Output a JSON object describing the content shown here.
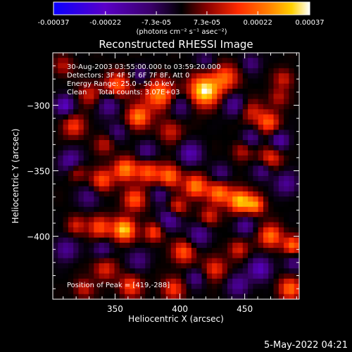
{
  "colorbar": {
    "tick_labels": [
      "-0.00037",
      "-0.00022",
      "-7.3e-05",
      "7.3e-05",
      "0.00022",
      "0.00037"
    ],
    "ticks": [
      -0.00037,
      -0.00022,
      -7.3e-05,
      7.3e-05,
      0.00022,
      0.00037
    ],
    "range": [
      -0.00037,
      0.00037
    ],
    "unit_label": "(photons cm⁻² s⁻¹ asec⁻²)"
  },
  "chart_data": {
    "type": "heatmap",
    "title": "Reconstructed RHESSI Image",
    "xlabel": "Heliocentric X (arcsec)",
    "ylabel": "Heliocentric Y (arcsec)",
    "xlim": [
      302,
      492
    ],
    "ylim": [
      -448,
      -260
    ],
    "x_ticks": [
      350,
      400,
      450
    ],
    "x_tick_labels": [
      "350",
      "400",
      "450"
    ],
    "y_ticks": [
      -300,
      -350,
      -400
    ],
    "y_tick_labels": [
      "−300",
      "−350",
      "−400"
    ],
    "info_lines": [
      "30-Aug-2003 03:55:00.000 to 03:59:20.000",
      "Detectors: 3F 4F 5F 6F 7F 8F, Att 0",
      "Energy Range: 25.0 - 50.0 keV",
      "Clean     Total counts: 3.07E+03"
    ],
    "peak_label": "Position of Peak = [419,-288]",
    "peak": [
      419,
      -288
    ],
    "colormap": [
      "#0a00ff",
      "#5a00c8",
      "#3a006a",
      "#000000",
      "#8a0000",
      "#ff2a00",
      "#ff8000",
      "#ffd000",
      "#ffffff"
    ],
    "blobs": [
      {
        "x": 419,
        "y": -289,
        "v": 1.0,
        "s": 8
      },
      {
        "x": 384,
        "y": -292,
        "v": 0.7,
        "s": 8
      },
      {
        "x": 435,
        "y": -279,
        "v": 0.55,
        "s": 7
      },
      {
        "x": 352,
        "y": -285,
        "v": 0.55,
        "s": 7
      },
      {
        "x": 368,
        "y": -309,
        "v": 0.7,
        "s": 6
      },
      {
        "x": 330,
        "y": -292,
        "v": 0.35,
        "s": 6
      },
      {
        "x": 318,
        "y": -316,
        "v": 0.45,
        "s": 6
      },
      {
        "x": 342,
        "y": -330,
        "v": 0.3,
        "s": 5
      },
      {
        "x": 393,
        "y": -320,
        "v": 0.35,
        "s": 6
      },
      {
        "x": 455,
        "y": -305,
        "v": 0.35,
        "s": 6
      },
      {
        "x": 468,
        "y": -313,
        "v": 0.55,
        "s": 6
      },
      {
        "x": 476,
        "y": -294,
        "v": 0.3,
        "s": 5
      },
      {
        "x": 470,
        "y": -340,
        "v": 0.45,
        "s": 6
      },
      {
        "x": 448,
        "y": -335,
        "v": 0.3,
        "s": 5
      },
      {
        "x": 320,
        "y": -350,
        "v": 0.35,
        "s": 5
      },
      {
        "x": 340,
        "y": -357,
        "v": 0.55,
        "s": 6
      },
      {
        "x": 358,
        "y": -349,
        "v": 0.7,
        "s": 6
      },
      {
        "x": 375,
        "y": -351,
        "v": 0.55,
        "s": 6
      },
      {
        "x": 392,
        "y": -354,
        "v": 0.65,
        "s": 6
      },
      {
        "x": 412,
        "y": -362,
        "v": 0.7,
        "s": 6
      },
      {
        "x": 430,
        "y": -367,
        "v": 0.65,
        "s": 6
      },
      {
        "x": 446,
        "y": -373,
        "v": 0.85,
        "s": 6
      },
      {
        "x": 458,
        "y": -376,
        "v": 0.65,
        "s": 5
      },
      {
        "x": 365,
        "y": -372,
        "v": 0.55,
        "s": 6
      },
      {
        "x": 398,
        "y": -378,
        "v": 0.45,
        "s": 5
      },
      {
        "x": 423,
        "y": -385,
        "v": 0.4,
        "s": 5
      },
      {
        "x": 357,
        "y": -395,
        "v": 0.9,
        "s": 6
      },
      {
        "x": 338,
        "y": -393,
        "v": 0.55,
        "s": 6
      },
      {
        "x": 320,
        "y": -392,
        "v": 0.35,
        "s": 5
      },
      {
        "x": 380,
        "y": -397,
        "v": 0.5,
        "s": 5
      },
      {
        "x": 403,
        "y": -412,
        "v": 0.55,
        "s": 6
      },
      {
        "x": 427,
        "y": -425,
        "v": 0.45,
        "s": 6
      },
      {
        "x": 470,
        "y": -400,
        "v": 0.65,
        "s": 6
      },
      {
        "x": 487,
        "y": -407,
        "v": 0.6,
        "s": 5
      },
      {
        "x": 445,
        "y": -410,
        "v": 0.4,
        "s": 5
      },
      {
        "x": 342,
        "y": -425,
        "v": 0.4,
        "s": 6
      },
      {
        "x": 362,
        "y": -438,
        "v": 0.5,
        "s": 6
      },
      {
        "x": 326,
        "y": -440,
        "v": 0.35,
        "s": 5
      },
      {
        "x": 395,
        "y": -440,
        "v": 0.45,
        "s": 6
      },
      {
        "x": 485,
        "y": -440,
        "v": 0.6,
        "s": 6
      },
      {
        "x": 480,
        "y": -280,
        "v": 0.35,
        "s": 5
      },
      {
        "x": 310,
        "y": -270,
        "v": 0.3,
        "s": 5
      }
    ],
    "dips": [
      {
        "x": 311,
        "y": -300,
        "v": -0.6,
        "s": 5
      },
      {
        "x": 345,
        "y": -300,
        "v": -0.4,
        "s": 6
      },
      {
        "x": 316,
        "y": -343,
        "v": -0.5,
        "s": 6
      },
      {
        "x": 330,
        "y": -370,
        "v": -0.3,
        "s": 6
      },
      {
        "x": 352,
        "y": -320,
        "v": -0.3,
        "s": 5
      },
      {
        "x": 400,
        "y": -300,
        "v": -0.35,
        "s": 6
      },
      {
        "x": 408,
        "y": -337,
        "v": -0.5,
        "s": 6
      },
      {
        "x": 442,
        "y": -300,
        "v": -0.4,
        "s": 6
      },
      {
        "x": 455,
        "y": -325,
        "v": -0.35,
        "s": 5
      },
      {
        "x": 477,
        "y": -327,
        "v": -0.5,
        "s": 5
      },
      {
        "x": 482,
        "y": -360,
        "v": -0.4,
        "s": 6
      },
      {
        "x": 464,
        "y": -350,
        "v": -0.35,
        "s": 5
      },
      {
        "x": 374,
        "y": -335,
        "v": -0.35,
        "s": 5
      },
      {
        "x": 385,
        "y": -368,
        "v": -0.3,
        "s": 5
      },
      {
        "x": 432,
        "y": -352,
        "v": -0.3,
        "s": 5
      },
      {
        "x": 392,
        "y": -387,
        "v": -0.45,
        "s": 6
      },
      {
        "x": 415,
        "y": -399,
        "v": -0.4,
        "s": 6
      },
      {
        "x": 450,
        "y": -392,
        "v": -0.4,
        "s": 5
      },
      {
        "x": 312,
        "y": -410,
        "v": -0.4,
        "s": 6
      },
      {
        "x": 340,
        "y": -410,
        "v": -0.35,
        "s": 5
      },
      {
        "x": 368,
        "y": -418,
        "v": -0.3,
        "s": 6
      },
      {
        "x": 462,
        "y": -425,
        "v": -0.55,
        "s": 6
      },
      {
        "x": 445,
        "y": -437,
        "v": -0.4,
        "s": 6
      },
      {
        "x": 412,
        "y": -432,
        "v": -0.35,
        "s": 5
      },
      {
        "x": 488,
        "y": -420,
        "v": -0.3,
        "s": 5
      },
      {
        "x": 370,
        "y": -277,
        "v": -0.3,
        "s": 5
      },
      {
        "x": 455,
        "y": -268,
        "v": -0.3,
        "s": 5
      },
      {
        "x": 420,
        "y": -266,
        "v": -0.25,
        "s": 5
      }
    ]
  },
  "footer": {
    "timestamp": "5-May-2022 04:21"
  }
}
